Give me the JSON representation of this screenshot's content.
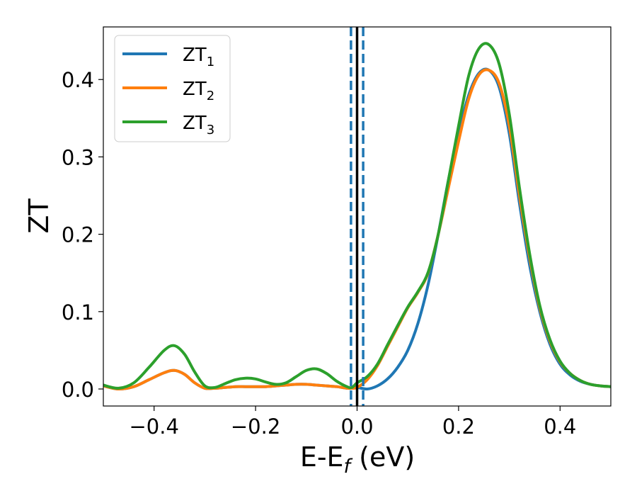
{
  "chart_data": {
    "type": "line",
    "xlabel": {
      "main": "E-E",
      "sub": "f",
      "unit": " (eV)"
    },
    "ylabel": "ZT",
    "xlim": [
      -0.5,
      0.5
    ],
    "ylim": [
      -0.022,
      0.468
    ],
    "x_ticks": [
      -0.4,
      -0.2,
      0.0,
      0.2,
      0.4
    ],
    "x_tick_labels": [
      "−0.4",
      "−0.2",
      "0.0",
      "0.2",
      "0.4"
    ],
    "y_ticks": [
      0.0,
      0.1,
      0.2,
      0.3,
      0.4
    ],
    "y_tick_labels": [
      "0.0",
      "0.1",
      "0.2",
      "0.3",
      "0.4"
    ],
    "grid": false,
    "legend_placement": "top-left",
    "series": [
      {
        "name": "ZT",
        "sub": "1",
        "color": "#1f77b4",
        "x": [
          -0.5,
          -0.47,
          -0.44,
          -0.41,
          -0.38,
          -0.36,
          -0.34,
          -0.32,
          -0.3,
          -0.28,
          -0.26,
          -0.24,
          -0.22,
          -0.2,
          -0.18,
          -0.16,
          -0.14,
          -0.12,
          -0.1,
          -0.08,
          -0.06,
          -0.04,
          -0.02,
          -0.01,
          0.0,
          0.02,
          0.04,
          0.06,
          0.08,
          0.1,
          0.12,
          0.14,
          0.16,
          0.18,
          0.2,
          0.22,
          0.24,
          0.26,
          0.28,
          0.3,
          0.32,
          0.34,
          0.36,
          0.38,
          0.4,
          0.42,
          0.44,
          0.46,
          0.48,
          0.5
        ],
        "y": [
          0.004,
          0.0,
          0.003,
          0.012,
          0.021,
          0.024,
          0.019,
          0.008,
          0.001,
          0.001,
          0.002,
          0.003,
          0.003,
          0.003,
          0.003,
          0.004,
          0.005,
          0.006,
          0.006,
          0.005,
          0.004,
          0.003,
          0.001,
          0.001,
          0.002,
          0.0,
          0.004,
          0.013,
          0.028,
          0.05,
          0.085,
          0.135,
          0.2,
          0.27,
          0.33,
          0.38,
          0.408,
          0.412,
          0.39,
          0.33,
          0.24,
          0.16,
          0.1,
          0.058,
          0.032,
          0.018,
          0.01,
          0.006,
          0.004,
          0.003
        ]
      },
      {
        "name": "ZT",
        "sub": "2",
        "color": "#ff7f0e",
        "x": [
          -0.5,
          -0.47,
          -0.44,
          -0.41,
          -0.38,
          -0.36,
          -0.34,
          -0.32,
          -0.3,
          -0.28,
          -0.26,
          -0.24,
          -0.22,
          -0.2,
          -0.18,
          -0.16,
          -0.14,
          -0.12,
          -0.1,
          -0.08,
          -0.06,
          -0.04,
          -0.02,
          -0.01,
          0.0,
          0.02,
          0.04,
          0.06,
          0.08,
          0.1,
          0.12,
          0.14,
          0.16,
          0.18,
          0.2,
          0.22,
          0.24,
          0.26,
          0.28,
          0.3,
          0.32,
          0.34,
          0.36,
          0.38,
          0.4,
          0.42,
          0.44,
          0.46,
          0.48,
          0.5
        ],
        "y": [
          0.004,
          0.0,
          0.003,
          0.012,
          0.021,
          0.024,
          0.019,
          0.008,
          0.001,
          0.001,
          0.002,
          0.003,
          0.003,
          0.003,
          0.003,
          0.004,
          0.005,
          0.006,
          0.006,
          0.005,
          0.004,
          0.003,
          0.001,
          0.001,
          0.002,
          0.012,
          0.03,
          0.055,
          0.08,
          0.105,
          0.125,
          0.15,
          0.2,
          0.26,
          0.32,
          0.375,
          0.406,
          0.412,
          0.395,
          0.34,
          0.25,
          0.17,
          0.105,
          0.062,
          0.035,
          0.02,
          0.011,
          0.006,
          0.004,
          0.003
        ]
      },
      {
        "name": "ZT",
        "sub": "3",
        "color": "#2ca02c",
        "x": [
          -0.5,
          -0.47,
          -0.44,
          -0.41,
          -0.38,
          -0.36,
          -0.34,
          -0.32,
          -0.3,
          -0.28,
          -0.26,
          -0.24,
          -0.22,
          -0.2,
          -0.18,
          -0.16,
          -0.14,
          -0.12,
          -0.1,
          -0.08,
          -0.06,
          -0.04,
          -0.02,
          -0.01,
          0.0,
          0.02,
          0.04,
          0.06,
          0.08,
          0.1,
          0.12,
          0.14,
          0.16,
          0.18,
          0.2,
          0.22,
          0.24,
          0.26,
          0.28,
          0.3,
          0.32,
          0.34,
          0.36,
          0.38,
          0.4,
          0.42,
          0.44,
          0.46,
          0.48,
          0.5
        ],
        "y": [
          0.005,
          0.001,
          0.008,
          0.028,
          0.05,
          0.056,
          0.045,
          0.022,
          0.004,
          0.002,
          0.007,
          0.012,
          0.014,
          0.013,
          0.009,
          0.006,
          0.008,
          0.016,
          0.024,
          0.026,
          0.02,
          0.01,
          0.003,
          0.002,
          0.008,
          0.016,
          0.032,
          0.057,
          0.082,
          0.106,
          0.126,
          0.151,
          0.2,
          0.27,
          0.34,
          0.405,
          0.44,
          0.445,
          0.42,
          0.355,
          0.26,
          0.175,
          0.108,
          0.064,
          0.036,
          0.02,
          0.011,
          0.006,
          0.004,
          0.003
        ]
      }
    ],
    "vlines": [
      {
        "x": 0.0,
        "color": "#000000",
        "style": "solid"
      },
      {
        "x": -0.012,
        "color": "#1f77b4",
        "style": "dashed"
      },
      {
        "x": 0.012,
        "color": "#1f77b4",
        "style": "dashed"
      }
    ]
  }
}
